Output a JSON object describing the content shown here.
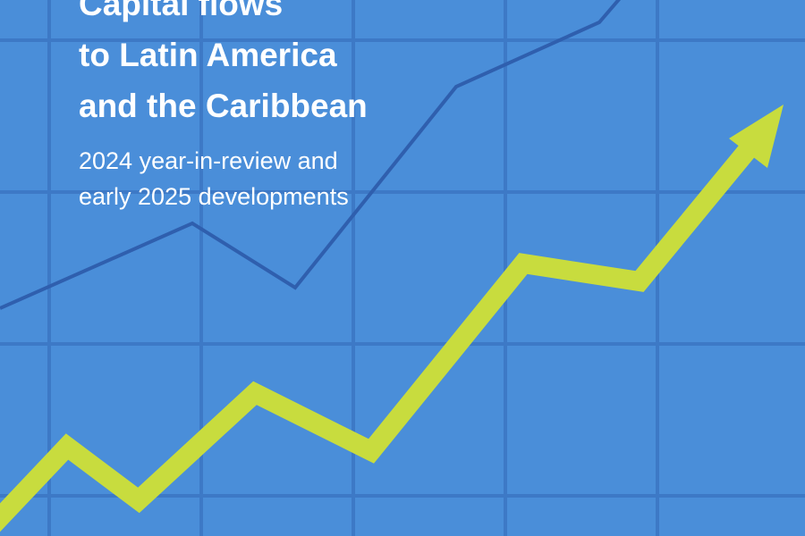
{
  "cover": {
    "title": [
      "Capital flows",
      "to Latin America",
      "and the Caribbean"
    ],
    "subtitle": [
      "2024 year-in-review and",
      "early 2025 developments"
    ]
  }
}
